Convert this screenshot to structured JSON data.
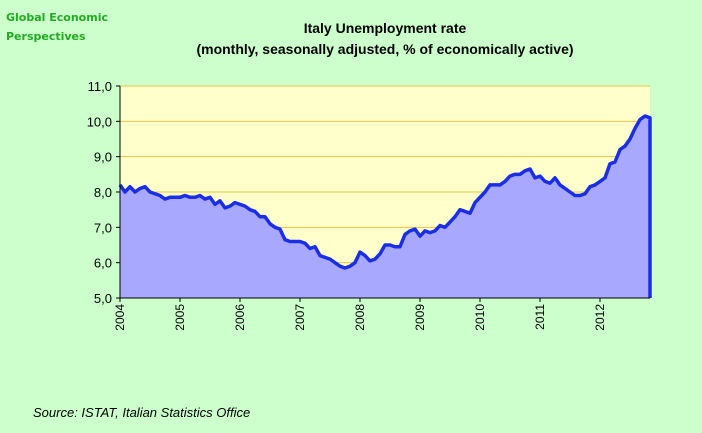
{
  "brand": {
    "line1": "Global Economic",
    "line2": "Perspectives"
  },
  "source": "Source: ISTAT, Italian Statistics Office",
  "colors": {
    "background": "#ccffcc",
    "plot_area": "#ffffcc",
    "area_fill": "#a8a8ff",
    "line": "#1a2ee6",
    "grid": "#e8c44a",
    "brand": "#22aa22"
  },
  "chart_data": {
    "type": "area",
    "title": "Italy Unemployment rate",
    "subtitle": "(monthly, seasonally adjusted, % of economically active)",
    "xlabel": "",
    "ylabel": "",
    "ylim": [
      5.0,
      11.0
    ],
    "yticks": [
      "5,0",
      "6,0",
      "7,0",
      "8,0",
      "9,0",
      "10,0",
      "11,0"
    ],
    "xticks": [
      "2004",
      "2005",
      "2006",
      "2007",
      "2008",
      "2009",
      "2010",
      "2011",
      "2012"
    ],
    "grid": "horizontal",
    "x_start": "2004-01",
    "x_frequency": "monthly",
    "series": [
      {
        "values": [
          8.2,
          8.0,
          8.15,
          8.0,
          8.1,
          8.15,
          8.0,
          7.95,
          7.9,
          7.8,
          7.85,
          7.85,
          7.85,
          7.9,
          7.85,
          7.85,
          7.9,
          7.8,
          7.85,
          7.65,
          7.75,
          7.55,
          7.6,
          7.7,
          7.65,
          7.6,
          7.5,
          7.45,
          7.3,
          7.3,
          7.1,
          7.0,
          6.95,
          6.65,
          6.6,
          6.6,
          6.6,
          6.55,
          6.4,
          6.45,
          6.2,
          6.15,
          6.1,
          6.0,
          5.9,
          5.85,
          5.9,
          6.0,
          6.3,
          6.2,
          6.05,
          6.1,
          6.25,
          6.5,
          6.5,
          6.45,
          6.45,
          6.8,
          6.9,
          6.95,
          6.75,
          6.9,
          6.85,
          6.9,
          7.05,
          7.0,
          7.15,
          7.3,
          7.5,
          7.45,
          7.4,
          7.7,
          7.85,
          8.0,
          8.2,
          8.2,
          8.2,
          8.3,
          8.45,
          8.5,
          8.5,
          8.6,
          8.65,
          8.4,
          8.45,
          8.3,
          8.25,
          8.4,
          8.2,
          8.1,
          8.0,
          7.9,
          7.9,
          7.95,
          8.15,
          8.2,
          8.3,
          8.4,
          8.8,
          8.85,
          9.2,
          9.3,
          9.5,
          9.8,
          10.05,
          10.15,
          10.1
        ]
      }
    ]
  }
}
